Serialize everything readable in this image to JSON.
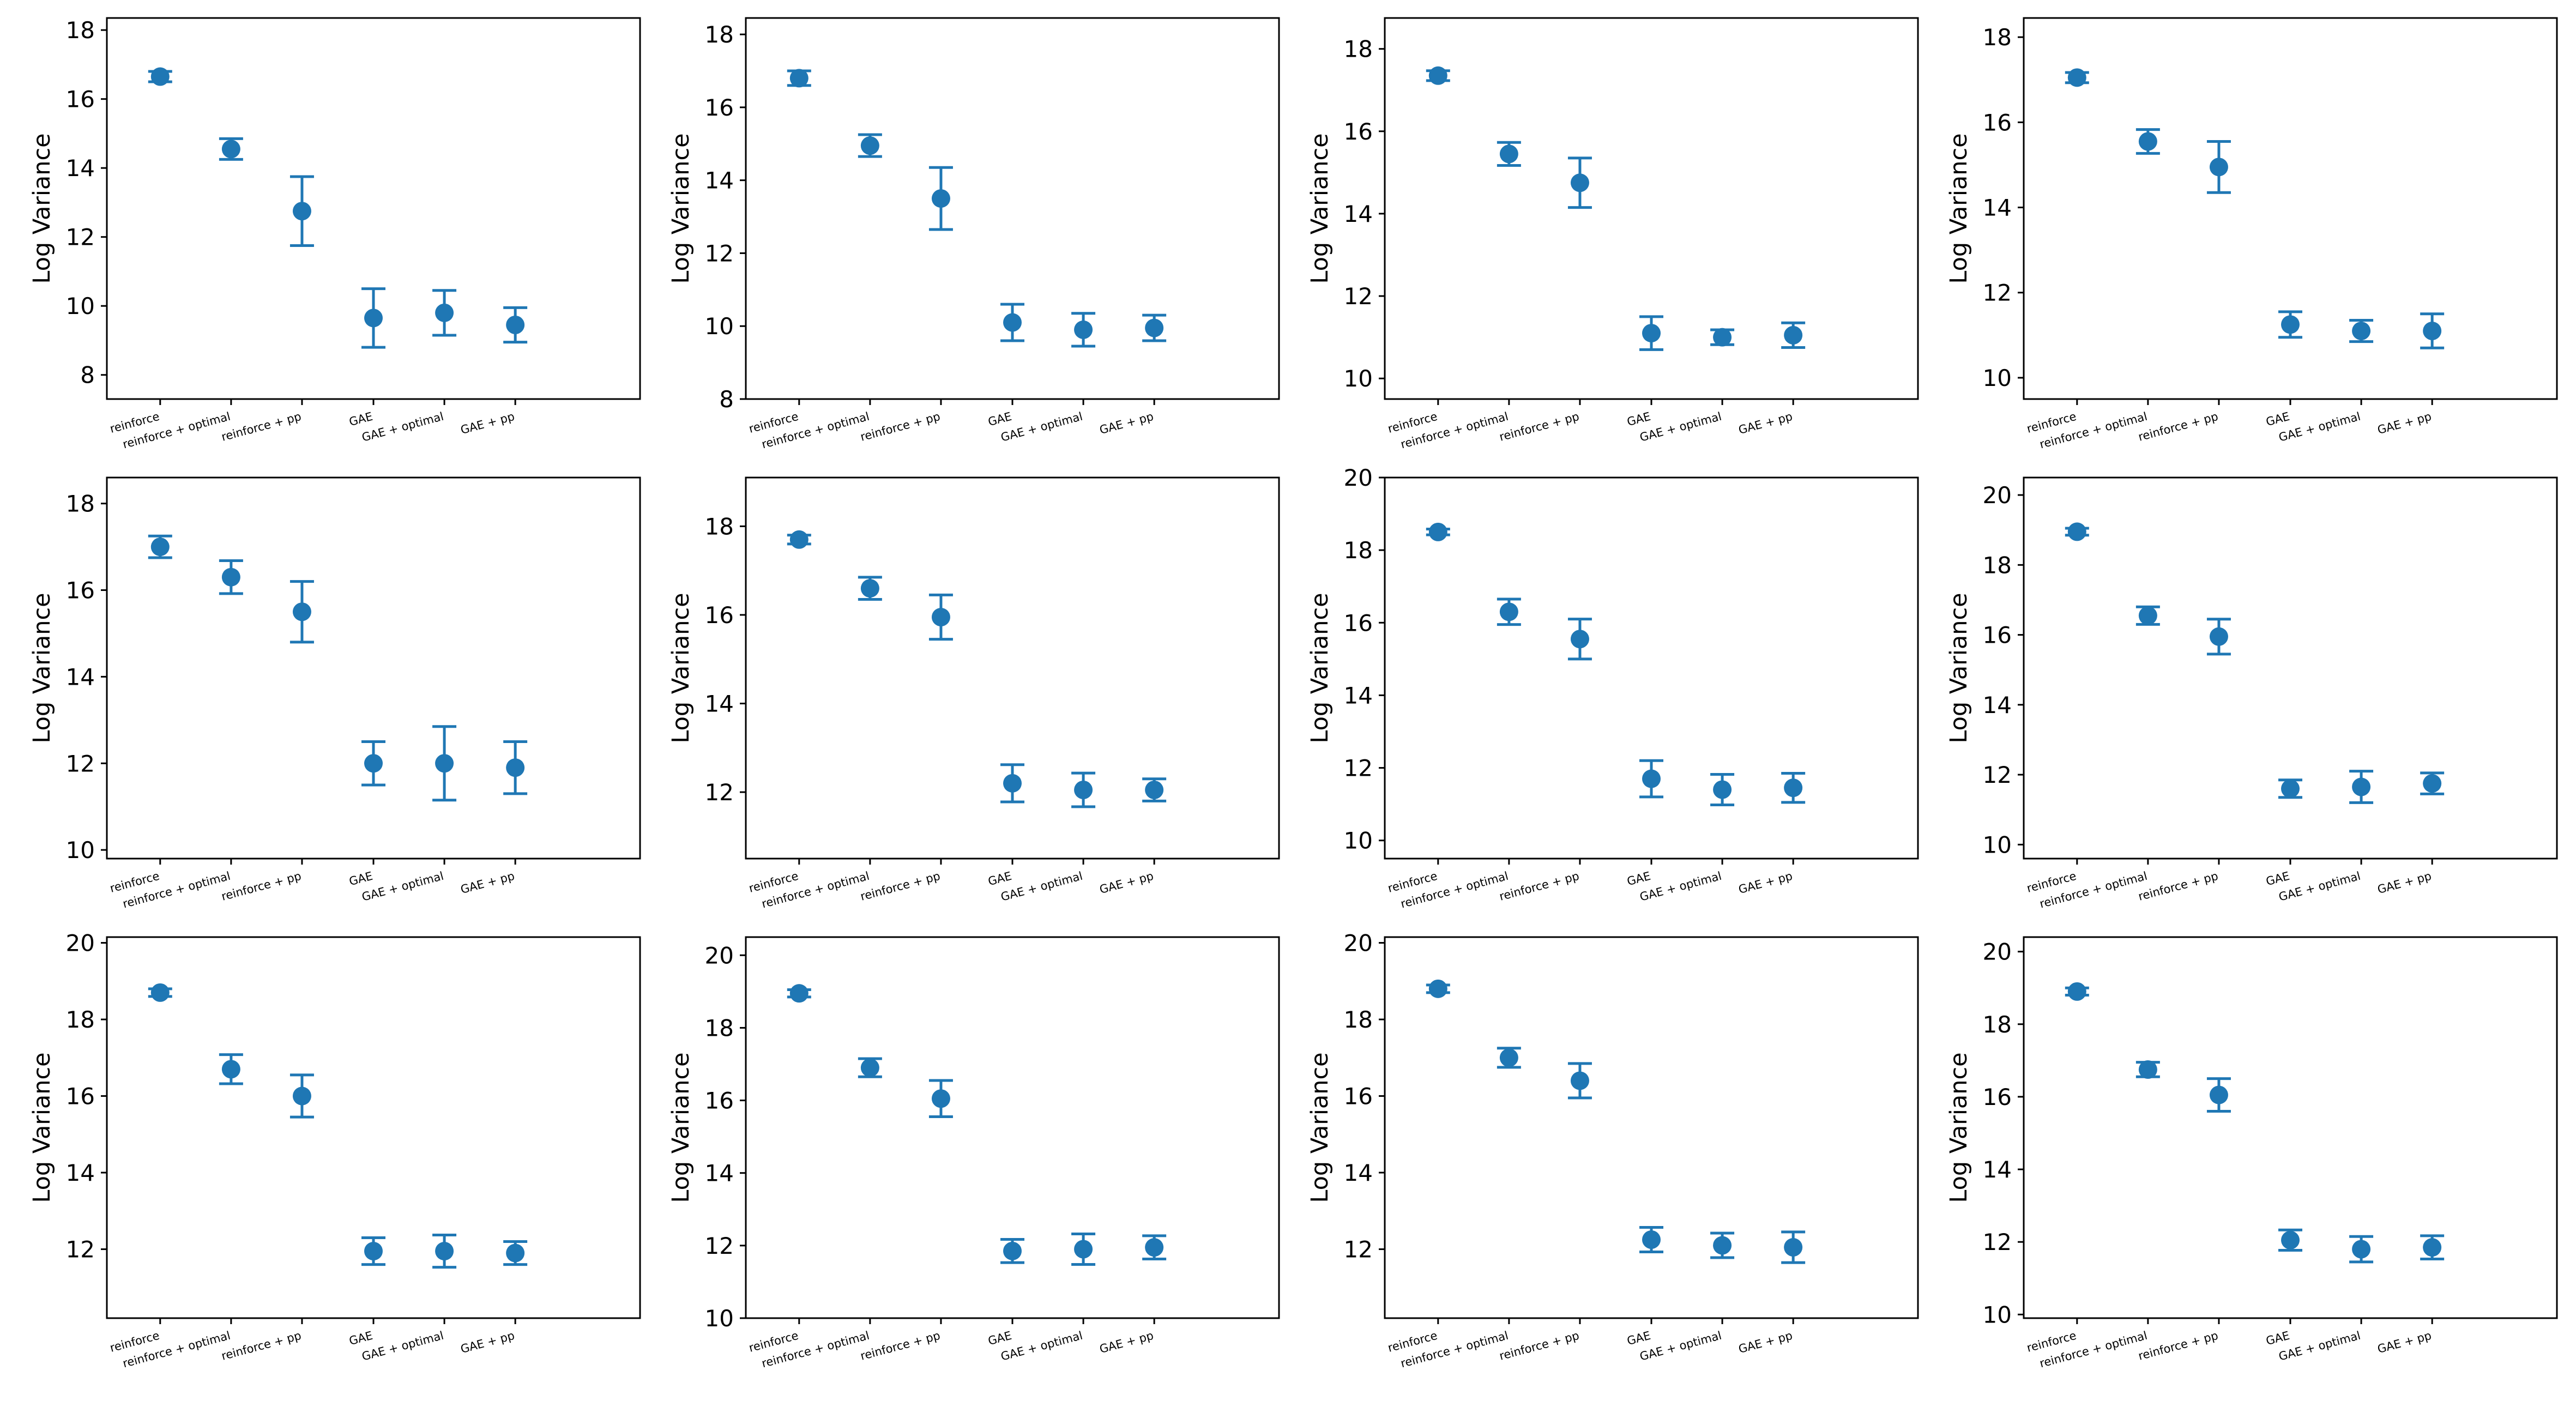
{
  "figure": {
    "color": "#1f77b4"
  },
  "chart_data": [
    {
      "type": "errorbar",
      "title": "",
      "xlabel": "",
      "ylabel": "Log Variance",
      "categories": [
        "reinforce",
        "reinforce + optimal",
        "reinforce + pp",
        "GAE",
        "GAE + optimal",
        "GAE + pp"
      ],
      "values": [
        16.65,
        14.55,
        12.75,
        9.65,
        9.8,
        9.45
      ],
      "errors": [
        0.15,
        0.3,
        1.0,
        0.85,
        0.65,
        0.5
      ],
      "ylim": [
        7.3,
        18.35
      ],
      "yticks": [
        8,
        10,
        12,
        14,
        16,
        18
      ]
    },
    {
      "type": "errorbar",
      "title": "",
      "xlabel": "",
      "ylabel": "Log Variance",
      "categories": [
        "reinforce",
        "reinforce + optimal",
        "reinforce + pp",
        "GAE",
        "GAE + optimal",
        "GAE + pp"
      ],
      "values": [
        16.8,
        14.95,
        13.5,
        10.1,
        9.9,
        9.95
      ],
      "errors": [
        0.2,
        0.3,
        0.85,
        0.5,
        0.45,
        0.35
      ],
      "ylim": [
        8.0,
        18.45
      ],
      "yticks": [
        8,
        10,
        12,
        14,
        16,
        18
      ]
    },
    {
      "type": "errorbar",
      "title": "",
      "xlabel": "",
      "ylabel": "Log Variance",
      "categories": [
        "reinforce",
        "reinforce + optimal",
        "reinforce + pp",
        "GAE",
        "GAE + optimal",
        "GAE + pp"
      ],
      "values": [
        17.35,
        15.45,
        14.75,
        11.1,
        11.0,
        11.05
      ],
      "errors": [
        0.12,
        0.28,
        0.6,
        0.4,
        0.18,
        0.3
      ],
      "ylim": [
        9.5,
        18.75
      ],
      "yticks": [
        10,
        12,
        14,
        16,
        18
      ]
    },
    {
      "type": "errorbar",
      "title": "",
      "xlabel": "",
      "ylabel": "Log Variance",
      "categories": [
        "reinforce",
        "reinforce + optimal",
        "reinforce + pp",
        "GAE",
        "GAE + optimal",
        "GAE + pp"
      ],
      "values": [
        17.05,
        15.55,
        14.95,
        11.25,
        11.1,
        11.1
      ],
      "errors": [
        0.12,
        0.28,
        0.6,
        0.3,
        0.25,
        0.4
      ],
      "ylim": [
        9.5,
        18.45
      ],
      "yticks": [
        10,
        12,
        14,
        16,
        18
      ]
    },
    {
      "type": "errorbar",
      "title": "",
      "xlabel": "",
      "ylabel": "Log Variance",
      "categories": [
        "reinforce",
        "reinforce + optimal",
        "reinforce + pp",
        "GAE",
        "GAE + optimal",
        "GAE + pp"
      ],
      "values": [
        17.0,
        16.3,
        15.5,
        12.0,
        12.0,
        11.9
      ],
      "errors": [
        0.25,
        0.38,
        0.7,
        0.5,
        0.85,
        0.6
      ],
      "ylim": [
        9.8,
        18.6
      ],
      "yticks": [
        10,
        12,
        14,
        16,
        18
      ]
    },
    {
      "type": "errorbar",
      "title": "",
      "xlabel": "",
      "ylabel": "Log Variance",
      "categories": [
        "reinforce",
        "reinforce + optimal",
        "reinforce + pp",
        "GAE",
        "GAE + optimal",
        "GAE + pp"
      ],
      "values": [
        17.7,
        16.6,
        15.95,
        12.2,
        12.05,
        12.05
      ],
      "errors": [
        0.1,
        0.25,
        0.5,
        0.42,
        0.38,
        0.25
      ],
      "ylim": [
        10.5,
        19.1
      ],
      "yticks": [
        12,
        14,
        16,
        18
      ]
    },
    {
      "type": "errorbar",
      "title": "",
      "xlabel": "",
      "ylabel": "Log Variance",
      "categories": [
        "reinforce",
        "reinforce + optimal",
        "reinforce + pp",
        "GAE",
        "GAE + optimal",
        "GAE + pp"
      ],
      "values": [
        18.5,
        16.3,
        15.55,
        11.7,
        11.4,
        11.45
      ],
      "errors": [
        0.08,
        0.35,
        0.55,
        0.5,
        0.42,
        0.4
      ],
      "ylim": [
        9.5,
        20.0
      ],
      "yticks": [
        10,
        12,
        14,
        16,
        18,
        20
      ]
    },
    {
      "type": "errorbar",
      "title": "",
      "xlabel": "",
      "ylabel": "Log Variance",
      "categories": [
        "reinforce",
        "reinforce + optimal",
        "reinforce + pp",
        "GAE",
        "GAE + optimal",
        "GAE + pp"
      ],
      "values": [
        18.95,
        16.55,
        15.95,
        11.6,
        11.65,
        11.75
      ],
      "errors": [
        0.1,
        0.25,
        0.5,
        0.25,
        0.45,
        0.3
      ],
      "ylim": [
        9.6,
        20.5
      ],
      "yticks": [
        10,
        12,
        14,
        16,
        18,
        20
      ]
    },
    {
      "type": "errorbar",
      "title": "",
      "xlabel": "",
      "ylabel": "Log Variance",
      "categories": [
        "reinforce",
        "reinforce + optimal",
        "reinforce + pp",
        "GAE",
        "GAE + optimal",
        "GAE + pp"
      ],
      "values": [
        18.7,
        16.7,
        16.0,
        11.95,
        11.95,
        11.9
      ],
      "errors": [
        0.1,
        0.38,
        0.55,
        0.35,
        0.42,
        0.3
      ],
      "ylim": [
        10.2,
        20.15
      ],
      "yticks": [
        12,
        14,
        16,
        18,
        20
      ]
    },
    {
      "type": "errorbar",
      "title": "",
      "xlabel": "",
      "ylabel": "Log Variance",
      "categories": [
        "reinforce",
        "reinforce + optimal",
        "reinforce + pp",
        "GAE",
        "GAE + optimal",
        "GAE + pp"
      ],
      "values": [
        18.95,
        16.9,
        16.05,
        11.85,
        11.9,
        11.95
      ],
      "errors": [
        0.1,
        0.25,
        0.5,
        0.32,
        0.42,
        0.32
      ],
      "ylim": [
        10.0,
        20.5
      ],
      "yticks": [
        10,
        12,
        14,
        16,
        18,
        20
      ]
    },
    {
      "type": "errorbar",
      "title": "",
      "xlabel": "",
      "ylabel": "Log Variance",
      "categories": [
        "reinforce",
        "reinforce + optimal",
        "reinforce + pp",
        "GAE",
        "GAE + optimal",
        "GAE + pp"
      ],
      "values": [
        18.8,
        17.0,
        16.4,
        12.25,
        12.1,
        12.05
      ],
      "errors": [
        0.1,
        0.25,
        0.45,
        0.32,
        0.32,
        0.4
      ],
      "ylim": [
        10.2,
        20.15
      ],
      "yticks": [
        12,
        14,
        16,
        18,
        20
      ]
    },
    {
      "type": "errorbar",
      "title": "",
      "xlabel": "",
      "ylabel": "Log Variance",
      "categories": [
        "reinforce",
        "reinforce + optimal",
        "reinforce + pp",
        "GAE",
        "GAE + optimal",
        "GAE + pp"
      ],
      "values": [
        18.9,
        16.75,
        16.05,
        12.05,
        11.8,
        11.85
      ],
      "errors": [
        0.1,
        0.2,
        0.45,
        0.28,
        0.35,
        0.32
      ],
      "ylim": [
        9.9,
        20.4
      ],
      "yticks": [
        10,
        12,
        14,
        16,
        18,
        20
      ]
    }
  ]
}
